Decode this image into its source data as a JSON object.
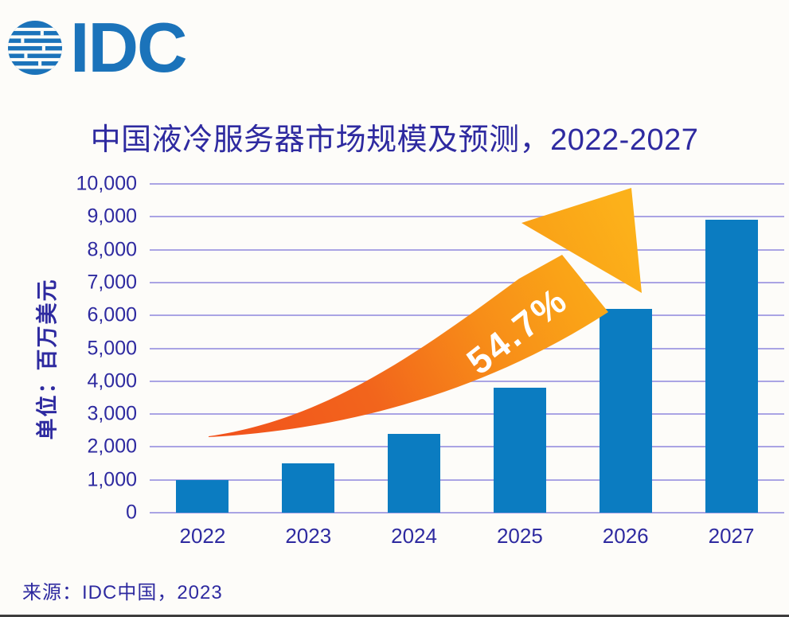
{
  "logo": {
    "text": "IDC",
    "icon": "idc-globe-icon"
  },
  "header": {
    "title": "中国液冷服务器市场规模及预测，2022-2027"
  },
  "footer": {
    "source": "来源：IDC中国，2023"
  },
  "colors": {
    "bar": "#0b7cc1",
    "gridline": "#aaa4e4",
    "text": "#2e2aa0",
    "logo_blue": "#1b73ba",
    "arrow_tail_orange": "#f1511c",
    "arrow_head_amber": "#fcb11a",
    "annotation_text": "#ffffff",
    "background": "#fdfcf9"
  },
  "chart_data": {
    "type": "bar",
    "title": "中国液冷服务器市场规模及预测，2022-2027",
    "categories": [
      "2022",
      "2023",
      "2024",
      "2025",
      "2026",
      "2027"
    ],
    "values": [
      1000,
      1500,
      2400,
      3800,
      6200,
      8900
    ],
    "xlabel": "",
    "ylabel": "单位：百万美元",
    "ylim": [
      0,
      10000
    ],
    "ytick_step": 1000,
    "ytick_labels": [
      "0",
      "1,000",
      "2,000",
      "3,000",
      "4,000",
      "5,000",
      "6,000",
      "7,000",
      "8,000",
      "9,000",
      "10,000"
    ],
    "grid": true,
    "legend": false,
    "annotation": {
      "text": "54.7%",
      "shape": "curved-growth-arrow"
    }
  }
}
